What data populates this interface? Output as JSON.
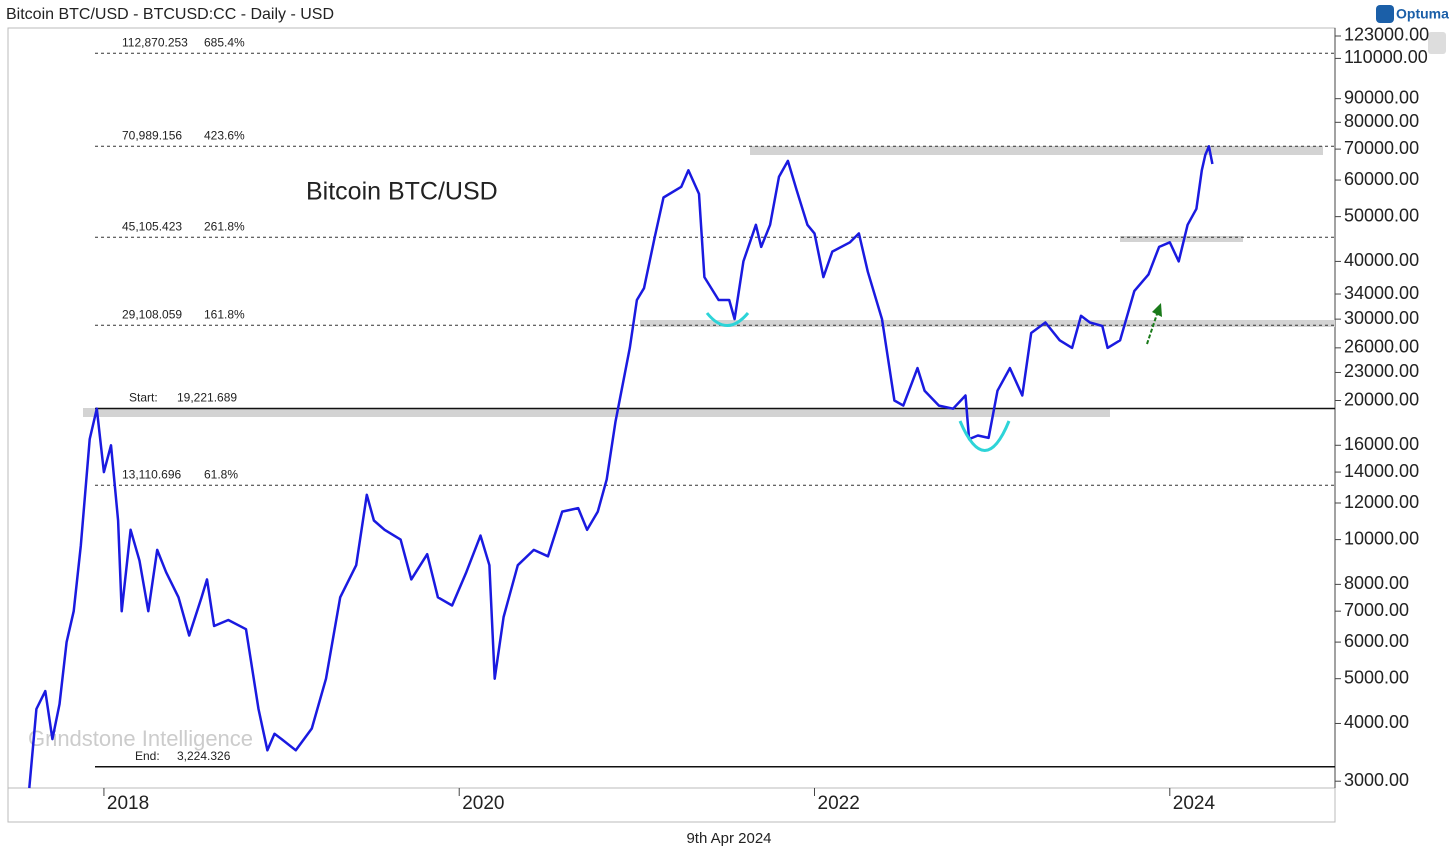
{
  "chart_data": {
    "type": "line",
    "title": "Bitcoin BTC/USD - BTCUSD:CC - Daily - USD",
    "logo": "Optuma",
    "watermark": "Grindstone Intelligence",
    "date_label": "9th Apr 2024",
    "log_scale": true,
    "xlim": [
      2017.46,
      2024.93
    ],
    "xticks": [
      2018,
      2020,
      2022,
      2024
    ],
    "ylim": [
      2900,
      128000
    ],
    "yticks": [
      {
        "value": 123000,
        "label": "123000.00"
      },
      {
        "value": 110000,
        "label": "110000.00"
      },
      {
        "value": 90000,
        "label": "90000.00"
      },
      {
        "value": 80000,
        "label": "80000.00"
      },
      {
        "value": 70000,
        "label": "70000.00"
      },
      {
        "value": 60000,
        "label": "60000.00"
      },
      {
        "value": 50000,
        "label": "50000.00"
      },
      {
        "value": 40000,
        "label": "40000.00"
      },
      {
        "value": 34000,
        "label": "34000.00"
      },
      {
        "value": 30000,
        "label": "30000.00"
      },
      {
        "value": 26000,
        "label": "26000.00"
      },
      {
        "value": 23000,
        "label": "23000.00"
      },
      {
        "value": 20000,
        "label": "20000.00"
      },
      {
        "value": 16000,
        "label": "16000.00"
      },
      {
        "value": 14000,
        "label": "14000.00"
      },
      {
        "value": 12000,
        "label": "12000.00"
      },
      {
        "value": 10000,
        "label": "10000.00"
      },
      {
        "value": 8000,
        "label": "8000.00"
      },
      {
        "value": 7000,
        "label": "7000.00"
      },
      {
        "value": 6000,
        "label": "6000.00"
      },
      {
        "value": 5000,
        "label": "5000.00"
      },
      {
        "value": 4000,
        "label": "4000.00"
      },
      {
        "value": 3000,
        "label": "3000.00"
      }
    ],
    "levels": [
      {
        "level": {
          "value": 112870.253,
          "label": "112,870.253"
        },
        "ratio": "685.4%"
      },
      {
        "level": {
          "value": 70989.156,
          "label": "70,989.156"
        },
        "ratio": "423.6%"
      },
      {
        "level": {
          "value": 45105.423,
          "label": "45,105.423"
        },
        "ratio": "261.8%"
      },
      {
        "level": {
          "value": 29108.059,
          "label": "29,108.059"
        },
        "ratio": "161.8%"
      },
      {
        "level": {
          "value": 13110.696,
          "label": "13,110.696"
        },
        "ratio": "61.8%"
      }
    ],
    "start": {
      "text": "Start:",
      "level": {
        "value": 19221.689,
        "label": "19,221.689"
      }
    },
    "end": {
      "text": "End:",
      "level": {
        "value": 3224.326,
        "label": "3,224.326"
      }
    },
    "x": [
      2017.58,
      2017.62,
      2017.67,
      2017.71,
      2017.75,
      2017.79,
      2017.83,
      2017.87,
      2017.92,
      2017.96,
      2018.0,
      2018.04,
      2018.08,
      2018.1,
      2018.15,
      2018.2,
      2018.25,
      2018.3,
      2018.35,
      2018.42,
      2018.48,
      2018.55,
      2018.58,
      2018.62,
      2018.7,
      2018.8,
      2018.87,
      2018.92,
      2018.96,
      2019.0,
      2019.08,
      2019.17,
      2019.25,
      2019.33,
      2019.42,
      2019.48,
      2019.52,
      2019.58,
      2019.67,
      2019.73,
      2019.82,
      2019.88,
      2019.96,
      2020.04,
      2020.12,
      2020.17,
      2020.2,
      2020.25,
      2020.33,
      2020.42,
      2020.5,
      2020.58,
      2020.67,
      2020.72,
      2020.78,
      2020.83,
      2020.88,
      2020.96,
      2021.0,
      2021.04,
      2021.1,
      2021.15,
      2021.25,
      2021.29,
      2021.35,
      2021.38,
      2021.46,
      2021.52,
      2021.55,
      2021.6,
      2021.67,
      2021.7,
      2021.75,
      2021.8,
      2021.85,
      2021.9,
      2021.96,
      2022.0,
      2022.05,
      2022.1,
      2022.2,
      2022.25,
      2022.3,
      2022.38,
      2022.45,
      2022.5,
      2022.58,
      2022.62,
      2022.7,
      2022.78,
      2022.85,
      2022.87,
      2022.92,
      2022.98,
      2023.03,
      2023.1,
      2023.17,
      2023.22,
      2023.3,
      2023.38,
      2023.45,
      2023.5,
      2023.55,
      2023.62,
      2023.65,
      2023.72,
      2023.8,
      2023.88,
      2023.94,
      2024.0,
      2024.05,
      2024.1,
      2024.15,
      2024.18,
      2024.2,
      2024.22,
      2024.24
    ],
    "series": [
      {
        "name": "Bitcoin BTC/USD",
        "color": "#1a1ae0",
        "values": [
          2900,
          4300,
          4700,
          3700,
          4400,
          6000,
          7000,
          9700,
          16500,
          19200,
          14000,
          16000,
          11000,
          7000,
          10500,
          9000,
          7000,
          9500,
          8500,
          7500,
          6200,
          7500,
          8200,
          6500,
          6700,
          6400,
          4300,
          3500,
          3800,
          3700,
          3500,
          3900,
          5000,
          7500,
          8800,
          12500,
          11000,
          10500,
          10000,
          8200,
          9300,
          7500,
          7200,
          8500,
          10200,
          8800,
          5000,
          6800,
          8800,
          9500,
          9200,
          11500,
          11700,
          10500,
          11500,
          13500,
          18000,
          26000,
          33000,
          35000,
          45000,
          55000,
          58000,
          63000,
          56000,
          37000,
          33000,
          33000,
          30000,
          40000,
          48000,
          43000,
          48000,
          61000,
          66000,
          57000,
          48000,
          46000,
          37000,
          42000,
          44000,
          46000,
          38000,
          30000,
          20000,
          19500,
          23500,
          21000,
          19500,
          19200,
          20500,
          16500,
          16800,
          16600,
          21000,
          23500,
          20500,
          28000,
          29500,
          27000,
          26000,
          30500,
          29500,
          29000,
          26000,
          27000,
          34500,
          37500,
          43000,
          44000,
          40000,
          48000,
          52000,
          63000,
          68000,
          71000,
          65000
        ]
      }
    ]
  }
}
